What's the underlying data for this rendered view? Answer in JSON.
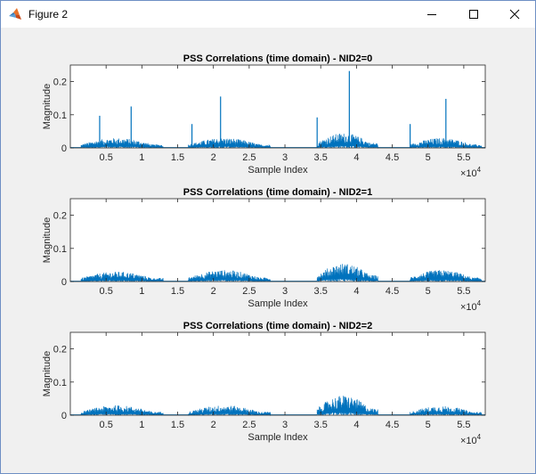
{
  "window": {
    "title": "Figure 2",
    "icon": "matlab-icon",
    "buttons": [
      "minimize-icon",
      "maximize-icon",
      "close-icon"
    ]
  },
  "colors": {
    "line": "#0072bd",
    "axes_bg": "#ffffff",
    "figure_bg": "#f0f0f0",
    "axis": "#262626"
  },
  "chart_data": [
    {
      "type": "line",
      "title": "PSS Correlations (time domain) - NID2=0",
      "xlabel": "Sample Index",
      "ylabel": "Magnitude",
      "xlim": [
        0,
        58000
      ],
      "ylim": [
        0,
        0.25
      ],
      "xticks": [
        5000,
        10000,
        15000,
        20000,
        25000,
        30000,
        35000,
        40000,
        45000,
        50000,
        55000
      ],
      "xtick_labels": [
        "0.5",
        "1",
        "1.5",
        "2",
        "2.5",
        "3",
        "3.5",
        "4",
        "4.5",
        "5",
        "5.5"
      ],
      "yticks": [
        0,
        0.1,
        0.2
      ],
      "ytick_labels": [
        "0",
        "0.1",
        "0.2"
      ],
      "x_exponent": "×10",
      "x_exponent_power": "4",
      "active_regions": [
        [
          1500,
          13000
        ],
        [
          16500,
          28000
        ],
        [
          34500,
          43000
        ],
        [
          47500,
          57500
        ]
      ],
      "envelope_peak": [
        0.03,
        0.03,
        0.045,
        0.03
      ],
      "peaks": [
        [
          4100,
          0.097
        ],
        [
          8500,
          0.125
        ],
        [
          17000,
          0.072
        ],
        [
          21000,
          0.155
        ],
        [
          34500,
          0.092
        ],
        [
          39000,
          0.232
        ],
        [
          47500,
          0.072
        ],
        [
          52500,
          0.148
        ]
      ]
    },
    {
      "type": "line",
      "title": "PSS Correlations (time domain) - NID2=1",
      "xlabel": "Sample Index",
      "ylabel": "Magnitude",
      "xlim": [
        0,
        58000
      ],
      "ylim": [
        0,
        0.25
      ],
      "xticks": [
        5000,
        10000,
        15000,
        20000,
        25000,
        30000,
        35000,
        40000,
        45000,
        50000,
        55000
      ],
      "xtick_labels": [
        "0.5",
        "1",
        "1.5",
        "2",
        "2.5",
        "3",
        "3.5",
        "4",
        "4.5",
        "5",
        "5.5"
      ],
      "yticks": [
        0,
        0.1,
        0.2
      ],
      "ytick_labels": [
        "0",
        "0.1",
        "0.2"
      ],
      "x_exponent": "×10",
      "x_exponent_power": "4",
      "active_regions": [
        [
          1500,
          13000
        ],
        [
          16500,
          28000
        ],
        [
          34500,
          43000
        ],
        [
          47500,
          57500
        ]
      ],
      "envelope_peak": [
        0.03,
        0.035,
        0.055,
        0.035
      ],
      "peaks": []
    },
    {
      "type": "line",
      "title": "PSS Correlations (time domain) - NID2=2",
      "xlabel": "Sample Index",
      "ylabel": "Magnitude",
      "xlim": [
        0,
        58000
      ],
      "ylim": [
        0,
        0.25
      ],
      "xticks": [
        5000,
        10000,
        15000,
        20000,
        25000,
        30000,
        35000,
        40000,
        45000,
        50000,
        55000
      ],
      "xtick_labels": [
        "0.5",
        "1",
        "1.5",
        "2",
        "2.5",
        "3",
        "3.5",
        "4",
        "4.5",
        "5",
        "5.5"
      ],
      "yticks": [
        0,
        0.1,
        0.2
      ],
      "ytick_labels": [
        "0",
        "0.1",
        "0.2"
      ],
      "x_exponent": "×10",
      "x_exponent_power": "4",
      "active_regions": [
        [
          1500,
          13000
        ],
        [
          16500,
          28000
        ],
        [
          34500,
          43000
        ],
        [
          47500,
          57500
        ]
      ],
      "envelope_peak": [
        0.03,
        0.03,
        0.06,
        0.028
      ],
      "peaks": []
    }
  ]
}
